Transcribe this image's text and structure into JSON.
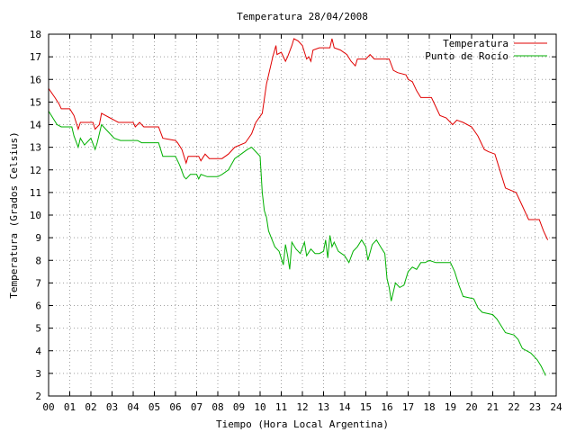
{
  "chart_data": {
    "type": "line",
    "title": "Temperatura 28/04/2008",
    "xlabel": "Tiempo (Hora Local Argentina)",
    "ylabel": "Temperatura (Grados Celsius)",
    "xlim": [
      0,
      24
    ],
    "ylim": [
      2,
      18
    ],
    "x_ticks": [
      "00",
      "01",
      "02",
      "03",
      "04",
      "05",
      "06",
      "07",
      "08",
      "09",
      "10",
      "11",
      "12",
      "13",
      "14",
      "15",
      "16",
      "17",
      "18",
      "19",
      "20",
      "21",
      "22",
      "23",
      "24"
    ],
    "y_ticks": [
      "2",
      "3",
      "4",
      "5",
      "6",
      "7",
      "8",
      "9",
      "10",
      "11",
      "12",
      "13",
      "14",
      "15",
      "16",
      "17",
      "18"
    ],
    "grid": true,
    "legend_position": "top-right",
    "series": [
      {
        "name": "Temperatura",
        "color": "#e00000",
        "points": [
          [
            0.0,
            15.6
          ],
          [
            0.3,
            15.2
          ],
          [
            0.5,
            14.9
          ],
          [
            0.6,
            14.7
          ],
          [
            1.0,
            14.7
          ],
          [
            1.2,
            14.4
          ],
          [
            1.4,
            13.8
          ],
          [
            1.5,
            14.1
          ],
          [
            2.1,
            14.1
          ],
          [
            2.2,
            13.8
          ],
          [
            2.4,
            14.0
          ],
          [
            2.5,
            14.5
          ],
          [
            2.9,
            14.3
          ],
          [
            3.3,
            14.1
          ],
          [
            4.0,
            14.1
          ],
          [
            4.1,
            13.9
          ],
          [
            4.3,
            14.1
          ],
          [
            4.5,
            13.9
          ],
          [
            5.2,
            13.9
          ],
          [
            5.4,
            13.4
          ],
          [
            6.0,
            13.3
          ],
          [
            6.1,
            13.2
          ],
          [
            6.3,
            12.9
          ],
          [
            6.5,
            12.3
          ],
          [
            6.6,
            12.6
          ],
          [
            7.1,
            12.6
          ],
          [
            7.2,
            12.4
          ],
          [
            7.4,
            12.7
          ],
          [
            7.6,
            12.5
          ],
          [
            8.2,
            12.5
          ],
          [
            8.5,
            12.7
          ],
          [
            8.8,
            13.0
          ],
          [
            9.3,
            13.2
          ],
          [
            9.6,
            13.6
          ],
          [
            9.8,
            14.1
          ],
          [
            10.1,
            14.5
          ],
          [
            10.3,
            15.8
          ],
          [
            10.6,
            17.0
          ],
          [
            10.75,
            17.5
          ],
          [
            10.8,
            17.1
          ],
          [
            11.0,
            17.2
          ],
          [
            11.2,
            16.8
          ],
          [
            11.3,
            17.0
          ],
          [
            11.5,
            17.5
          ],
          [
            11.6,
            17.8
          ],
          [
            11.8,
            17.7
          ],
          [
            12.0,
            17.5
          ],
          [
            12.2,
            16.9
          ],
          [
            12.3,
            17.0
          ],
          [
            12.4,
            16.8
          ],
          [
            12.5,
            17.3
          ],
          [
            12.8,
            17.4
          ],
          [
            13.3,
            17.4
          ],
          [
            13.4,
            17.8
          ],
          [
            13.5,
            17.4
          ],
          [
            13.8,
            17.3
          ],
          [
            14.1,
            17.1
          ],
          [
            14.3,
            16.8
          ],
          [
            14.5,
            16.6
          ],
          [
            14.6,
            16.9
          ],
          [
            15.0,
            16.9
          ],
          [
            15.2,
            17.1
          ],
          [
            15.4,
            16.9
          ],
          [
            16.1,
            16.9
          ],
          [
            16.3,
            16.4
          ],
          [
            16.5,
            16.3
          ],
          [
            16.9,
            16.2
          ],
          [
            17.0,
            16.0
          ],
          [
            17.2,
            15.9
          ],
          [
            17.4,
            15.5
          ],
          [
            17.6,
            15.2
          ],
          [
            18.1,
            15.2
          ],
          [
            18.3,
            14.8
          ],
          [
            18.5,
            14.4
          ],
          [
            18.8,
            14.3
          ],
          [
            19.1,
            14.0
          ],
          [
            19.3,
            14.2
          ],
          [
            19.6,
            14.1
          ],
          [
            20.0,
            13.9
          ],
          [
            20.3,
            13.5
          ],
          [
            20.6,
            12.9
          ],
          [
            20.8,
            12.8
          ],
          [
            21.1,
            12.7
          ],
          [
            21.2,
            12.4
          ],
          [
            21.4,
            11.8
          ],
          [
            21.6,
            11.2
          ],
          [
            22.1,
            11.0
          ],
          [
            22.3,
            10.6
          ],
          [
            22.5,
            10.2
          ],
          [
            22.7,
            9.8
          ],
          [
            23.2,
            9.8
          ],
          [
            23.4,
            9.3
          ],
          [
            23.6,
            8.9
          ]
        ]
      },
      {
        "name": "Punto de Rocío",
        "color": "#00b000",
        "points": [
          [
            0.0,
            14.6
          ],
          [
            0.2,
            14.3
          ],
          [
            0.4,
            14.0
          ],
          [
            0.6,
            13.9
          ],
          [
            1.1,
            13.9
          ],
          [
            1.2,
            13.5
          ],
          [
            1.4,
            13.0
          ],
          [
            1.5,
            13.4
          ],
          [
            1.7,
            13.1
          ],
          [
            2.0,
            13.4
          ],
          [
            2.2,
            12.9
          ],
          [
            2.3,
            13.2
          ],
          [
            2.5,
            14.0
          ],
          [
            2.8,
            13.7
          ],
          [
            3.1,
            13.4
          ],
          [
            3.4,
            13.3
          ],
          [
            4.2,
            13.3
          ],
          [
            4.4,
            13.2
          ],
          [
            5.2,
            13.2
          ],
          [
            5.4,
            12.6
          ],
          [
            6.0,
            12.6
          ],
          [
            6.2,
            12.2
          ],
          [
            6.4,
            11.7
          ],
          [
            6.5,
            11.6
          ],
          [
            6.7,
            11.8
          ],
          [
            7.0,
            11.8
          ],
          [
            7.1,
            11.6
          ],
          [
            7.2,
            11.8
          ],
          [
            7.5,
            11.7
          ],
          [
            8.0,
            11.7
          ],
          [
            8.2,
            11.8
          ],
          [
            8.5,
            12.0
          ],
          [
            8.8,
            12.5
          ],
          [
            9.1,
            12.7
          ],
          [
            9.4,
            12.9
          ],
          [
            9.6,
            13.0
          ],
          [
            9.8,
            12.8
          ],
          [
            10.0,
            12.6
          ],
          [
            10.1,
            11.0
          ],
          [
            10.2,
            10.2
          ],
          [
            10.3,
            9.9
          ],
          [
            10.4,
            9.3
          ],
          [
            10.7,
            8.6
          ],
          [
            10.9,
            8.4
          ],
          [
            11.1,
            7.8
          ],
          [
            11.2,
            8.7
          ],
          [
            11.3,
            8.2
          ],
          [
            11.4,
            7.6
          ],
          [
            11.5,
            8.8
          ],
          [
            11.7,
            8.5
          ],
          [
            11.9,
            8.3
          ],
          [
            12.1,
            8.8
          ],
          [
            12.2,
            8.2
          ],
          [
            12.4,
            8.5
          ],
          [
            12.6,
            8.3
          ],
          [
            12.8,
            8.3
          ],
          [
            13.0,
            8.4
          ],
          [
            13.1,
            8.9
          ],
          [
            13.2,
            8.1
          ],
          [
            13.3,
            9.1
          ],
          [
            13.4,
            8.6
          ],
          [
            13.5,
            8.8
          ],
          [
            13.7,
            8.4
          ],
          [
            14.0,
            8.2
          ],
          [
            14.2,
            7.9
          ],
          [
            14.4,
            8.4
          ],
          [
            14.6,
            8.6
          ],
          [
            14.8,
            8.9
          ],
          [
            15.0,
            8.6
          ],
          [
            15.1,
            8.0
          ],
          [
            15.3,
            8.7
          ],
          [
            15.5,
            8.9
          ],
          [
            15.7,
            8.6
          ],
          [
            15.9,
            8.3
          ],
          [
            16.0,
            7.2
          ],
          [
            16.1,
            6.8
          ],
          [
            16.2,
            6.2
          ],
          [
            16.4,
            7.0
          ],
          [
            16.6,
            6.8
          ],
          [
            16.8,
            6.9
          ],
          [
            17.0,
            7.5
          ],
          [
            17.2,
            7.7
          ],
          [
            17.4,
            7.6
          ],
          [
            17.6,
            7.9
          ],
          [
            17.8,
            7.9
          ],
          [
            18.0,
            8.0
          ],
          [
            18.3,
            7.9
          ],
          [
            18.6,
            7.9
          ],
          [
            19.0,
            7.9
          ],
          [
            19.2,
            7.5
          ],
          [
            19.4,
            6.9
          ],
          [
            19.6,
            6.4
          ],
          [
            20.1,
            6.3
          ],
          [
            20.3,
            5.9
          ],
          [
            20.5,
            5.7
          ],
          [
            21.0,
            5.6
          ],
          [
            21.2,
            5.4
          ],
          [
            21.4,
            5.1
          ],
          [
            21.6,
            4.8
          ],
          [
            22.0,
            4.7
          ],
          [
            22.2,
            4.5
          ],
          [
            22.4,
            4.1
          ],
          [
            22.8,
            3.9
          ],
          [
            23.1,
            3.6
          ],
          [
            23.3,
            3.3
          ],
          [
            23.5,
            2.9
          ]
        ]
      }
    ]
  }
}
